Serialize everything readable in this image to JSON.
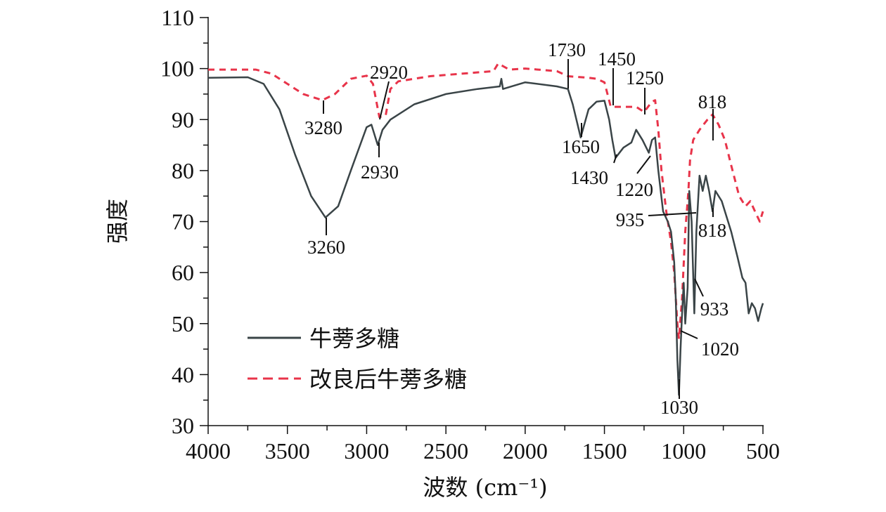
{
  "chart_data": {
    "type": "line",
    "title": "",
    "xlabel": "波数 (cm⁻¹)",
    "ylabel": "强度",
    "xlim": [
      4000,
      500
    ],
    "ylim": [
      30,
      110
    ],
    "x_reversed": true,
    "grid": false,
    "x_ticks": [
      4000,
      3500,
      3000,
      2500,
      2000,
      1500,
      1000,
      500
    ],
    "y_ticks": [
      30,
      40,
      50,
      60,
      70,
      80,
      90,
      100,
      110
    ],
    "legend_placement": "bottom-left",
    "colors": {
      "series0": "#3a4447",
      "series1": "#e8344a"
    },
    "series": [
      {
        "name": "牛蒡多糖",
        "style": "solid",
        "x": [
          4000,
          3750,
          3650,
          3550,
          3450,
          3350,
          3260,
          3180,
          3100,
          3000,
          2970,
          2930,
          2900,
          2850,
          2700,
          2500,
          2300,
          2160,
          2150,
          2140,
          2000,
          1800,
          1730,
          1700,
          1650,
          1600,
          1550,
          1500,
          1470,
          1450,
          1430,
          1380,
          1330,
          1300,
          1260,
          1220,
          1200,
          1180,
          1160,
          1130,
          1100,
          1080,
          1060,
          1050,
          1040,
          1030,
          1020,
          1010,
          1000,
          990,
          975,
          965,
          950,
          933,
          920,
          900,
          880,
          860,
          840,
          818,
          800,
          760,
          700,
          660,
          630,
          610,
          590,
          570,
          550,
          530,
          510,
          500
        ],
        "y": [
          98.2,
          98.3,
          97,
          92,
          83,
          75,
          70.8,
          73,
          80,
          88.5,
          89,
          85,
          88,
          90,
          93,
          95,
          96,
          96.5,
          98,
          96,
          97.3,
          96.5,
          96,
          93,
          86.5,
          92,
          93.5,
          93.7,
          90,
          86,
          82.5,
          84.5,
          85.5,
          88,
          86,
          83.5,
          86,
          86.5,
          80,
          72,
          70,
          68,
          62,
          55,
          43,
          36,
          45,
          52,
          58,
          50,
          57,
          76,
          70,
          52,
          68,
          79,
          76,
          79,
          76,
          72,
          76,
          74,
          68,
          63,
          59,
          58,
          52,
          54,
          53,
          50.5,
          53,
          54
        ]
      },
      {
        "name": "改良后牛蒡多糖",
        "style": "dashed",
        "x": [
          4000,
          3700,
          3600,
          3500,
          3400,
          3280,
          3200,
          3100,
          3000,
          2960,
          2920,
          2880,
          2850,
          2800,
          2600,
          2400,
          2200,
          2170,
          2100,
          2000,
          1800,
          1730,
          1600,
          1550,
          1500,
          1460,
          1400,
          1300,
          1250,
          1200,
          1180,
          1160,
          1140,
          1110,
          1080,
          1060,
          1040,
          1030,
          1010,
          990,
          970,
          960,
          940,
          900,
          850,
          818,
          780,
          740,
          700,
          650,
          610,
          580,
          550,
          520,
          500
        ],
        "y": [
          99.8,
          99.8,
          99,
          97,
          95,
          93.8,
          95,
          98,
          98.6,
          97,
          90.5,
          90.8,
          96,
          97.5,
          98.5,
          99,
          99.5,
          101,
          99.8,
          100,
          99.5,
          98.5,
          98.2,
          98,
          97.3,
          92.5,
          92.5,
          92.5,
          91.5,
          93.5,
          93.8,
          88,
          80,
          72,
          66,
          60,
          50,
          47,
          55,
          68,
          76,
          82,
          86,
          88,
          90,
          91,
          89,
          86,
          81,
          75,
          73,
          74,
          72,
          70,
          72
        ]
      }
    ],
    "annotations": [
      "1730",
      "1450",
      "1250",
      "3280",
      "2920",
      "1650",
      "2930",
      "1430",
      "1220",
      "3260",
      "935",
      "818",
      "818",
      "933",
      "1020",
      "1030"
    ]
  }
}
